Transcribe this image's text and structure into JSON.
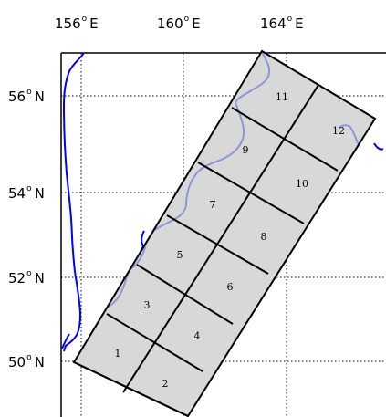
{
  "colors": {
    "coastline_outside": "#0000ff",
    "coastline_inside": "#8c96d8",
    "cell_fill": "#d8d8d8",
    "cell_stroke": "#000000",
    "grid": "#000000",
    "frame": "#000000"
  },
  "map": {
    "projection_grid": "dotted",
    "lon_ticks": [
      {
        "value": 156,
        "num": "156",
        "dir": "E"
      },
      {
        "value": 160,
        "num": "160",
        "dir": "E"
      },
      {
        "value": 164,
        "num": "164",
        "dir": "E"
      }
    ],
    "lat_ticks": [
      {
        "value": 56,
        "num": "56",
        "dir": "N"
      },
      {
        "value": 54,
        "num": "54",
        "dir": "N"
      },
      {
        "value": 52,
        "num": "52",
        "dir": "N"
      },
      {
        "value": 50,
        "num": "50",
        "dir": "N"
      }
    ],
    "degree_symbol": "o"
  },
  "swath": {
    "cells": [
      "1",
      "2",
      "3",
      "4",
      "5",
      "6",
      "7",
      "8",
      "9",
      "10",
      "11",
      "12"
    ]
  }
}
